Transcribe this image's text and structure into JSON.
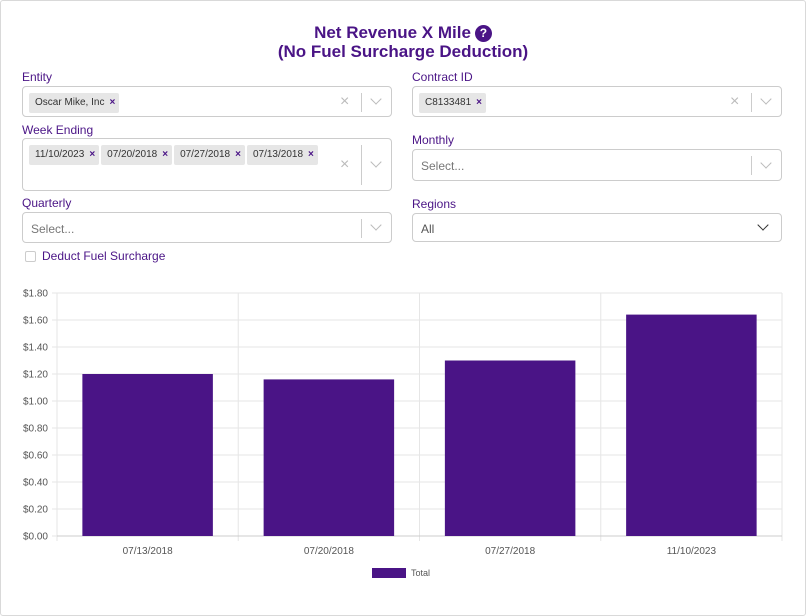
{
  "header": {
    "title_line1": "Net Revenue X Mile",
    "title_line2": "(No Fuel Surcharge Deduction)",
    "help_glyph": "?"
  },
  "filters": {
    "entity": {
      "label": "Entity",
      "tags": [
        "Oscar Mike, Inc"
      ]
    },
    "contract_id": {
      "label": "Contract ID",
      "tags": [
        "C8133481"
      ]
    },
    "week_ending": {
      "label": "Week Ending",
      "tags": [
        "11/10/2023",
        "07/20/2018",
        "07/27/2018",
        "07/13/2018"
      ]
    },
    "monthly": {
      "label": "Monthly",
      "placeholder": "Select..."
    },
    "quarterly": {
      "label": "Quarterly",
      "placeholder": "Select..."
    },
    "regions": {
      "label": "Regions",
      "value": "All"
    },
    "deduct_fuel": {
      "label": "Deduct Fuel Surcharge",
      "checked": false
    }
  },
  "glyphs": {
    "remove": "×",
    "clear": "×"
  },
  "colors": {
    "accent": "#4a1486",
    "bar": "#4a1486",
    "grid": "#e6e6e6"
  },
  "chart_data": {
    "type": "bar",
    "categories": [
      "07/13/2018",
      "07/20/2018",
      "07/27/2018",
      "11/10/2023"
    ],
    "series": [
      {
        "name": "Total",
        "values": [
          1.2,
          1.16,
          1.3,
          1.64
        ]
      }
    ],
    "ylim": [
      0,
      1.8
    ],
    "yticks": [
      0,
      0.2,
      0.4,
      0.6,
      0.8,
      1.0,
      1.2,
      1.4,
      1.6,
      1.8
    ],
    "ytick_labels": [
      "$0.00",
      "$0.20",
      "$0.40",
      "$0.60",
      "$0.80",
      "$1.00",
      "$1.20",
      "$1.40",
      "$1.60",
      "$1.80"
    ],
    "grid": true,
    "legend": "bottom"
  }
}
